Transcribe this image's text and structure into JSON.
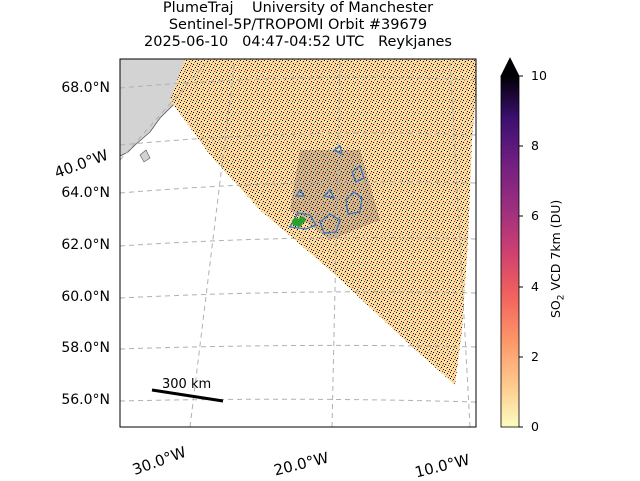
{
  "title": {
    "line1": "PlumeTraj    University of Manchester",
    "line2": "Sentinel-5P/TROPOMI Orbit #39679",
    "line3": "2025-06-10   04:47-04:52 UTC   Reykjanes"
  },
  "map": {
    "lat_labels": [
      "68.0°N",
      "64.0°N",
      "62.0°N",
      "60.0°N",
      "58.0°N",
      "56.0°N"
    ],
    "lon_labels": [
      "40.0°W",
      "30.0°W",
      "20.0°W",
      "10.0°W"
    ],
    "scale_bar": {
      "label": "300 km",
      "distance_km": 300
    },
    "land_color": "#d3d3d3",
    "grid": true
  },
  "colorbar": {
    "label": "SO",
    "label_sub": "2",
    "label_rest": " VCD 7km (DU)",
    "ticks": [
      "0",
      "2",
      "4",
      "6",
      "8",
      "10"
    ],
    "min": 0,
    "max": 10,
    "colormap": "magma_r",
    "extend": "max"
  },
  "plume": {
    "outline_color": "#3a78c4",
    "vent_marker_color": "#2ca02c"
  }
}
